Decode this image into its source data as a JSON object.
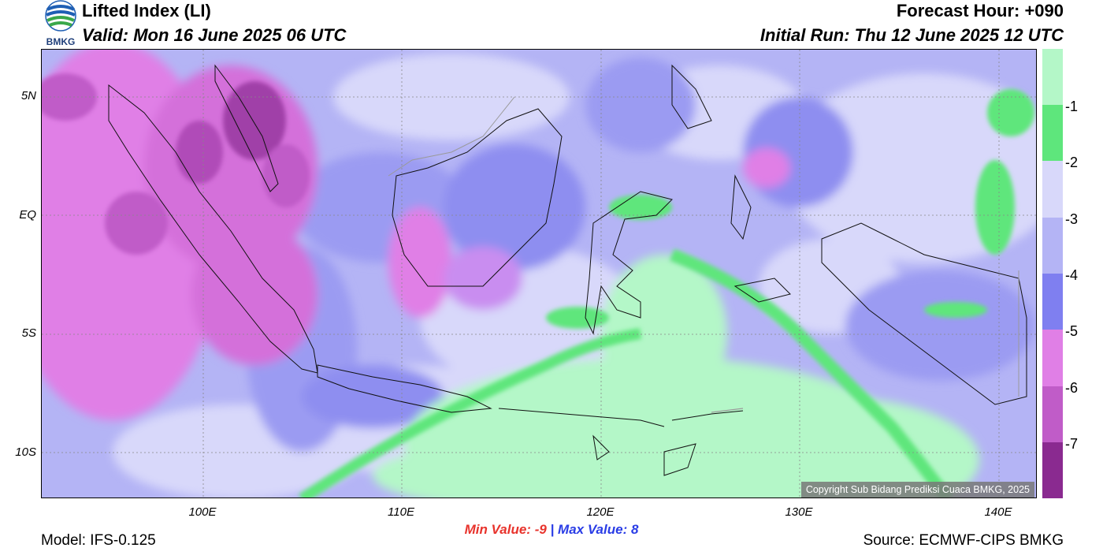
{
  "header": {
    "title": "Lifted Index (LI)",
    "valid": "Valid: Mon 16 June 2025 06 UTC",
    "forecast_hour": "Forecast Hour: +090",
    "initial_run": "Initial Run: Thu 12 June 2025 12 UTC",
    "logo_text": "BMKG"
  },
  "map": {
    "lat_labels": [
      "5N",
      "EQ",
      "5S",
      "10S"
    ],
    "lon_labels": [
      "100E",
      "110E",
      "120E",
      "130E",
      "140E"
    ],
    "copyright": "Copyright Sub Bidang Prediksi Cuaca BMKG, 2025"
  },
  "colorbar": {
    "labels": [
      "-1",
      "-2",
      "-3",
      "-4",
      "-5",
      "-6",
      "-7"
    ],
    "colors": [
      "#b4f7c8",
      "#5ee67c",
      "#d8d8fa",
      "#b4b4f5",
      "#7f7ff0",
      "#e07fe6",
      "#c05cc8",
      "#8a2a90"
    ]
  },
  "stats": {
    "min_label": "Min Value:",
    "min_value": "-9",
    "separator": "|",
    "max_label": "Max Value:",
    "max_value": "8"
  },
  "footer": {
    "model": "Model: IFS-0.125",
    "source": "Source: ECMWF-CIPS BMKG"
  }
}
